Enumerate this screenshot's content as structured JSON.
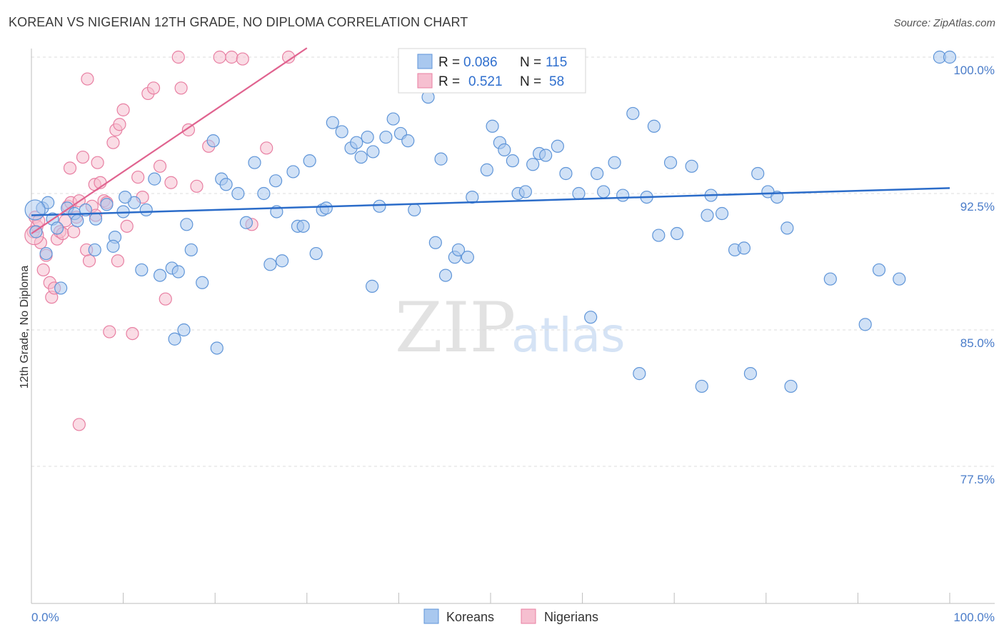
{
  "title": "KOREAN VS NIGERIAN 12TH GRADE, NO DIPLOMA CORRELATION CHART",
  "source": "Source: ZipAtlas.com",
  "watermark": {
    "zip": "ZIP",
    "atlas": "atlas"
  },
  "legend": {
    "r_label": "R =",
    "n_label": "N =",
    "rows": [
      {
        "series": "Koreans",
        "r": "0.086",
        "n": "115"
      },
      {
        "series": "Nigerians",
        "r": "0.521",
        "n": "58"
      }
    ]
  },
  "chart_data": {
    "type": "scatter",
    "title": "KOREAN VS NIGERIAN 12TH GRADE, NO DIPLOMA CORRELATION CHART",
    "xlabel": "",
    "ylabel": "12th Grade, No Diploma",
    "xlim": [
      0,
      100
    ],
    "ylim": [
      70,
      100.5
    ],
    "x_tick_labels": [
      "0.0%",
      "100.0%"
    ],
    "y_ticks": [
      {
        "value": 77.5,
        "label": "77.5%"
      },
      {
        "value": 85.0,
        "label": "85.0%"
      },
      {
        "value": 92.5,
        "label": "92.5%"
      },
      {
        "value": 100.0,
        "label": "100.0%"
      }
    ],
    "grid": true,
    "colors": {
      "Koreans_fill": "#a9c8ef",
      "Koreans_stroke": "#5f95d8",
      "Koreans_line": "#2b6cc9",
      "Nigerians_fill": "#f6bfd0",
      "Nigerians_stroke": "#e87fa2",
      "Nigerians_line": "#e0638f"
    },
    "series": [
      {
        "name": "Koreans",
        "trend": {
          "x0": 0,
          "y0": 91.3,
          "x1": 100,
          "y1": 92.8
        },
        "points": [
          [
            0.5,
            90.4
          ],
          [
            1.2,
            91.7
          ],
          [
            1.8,
            92.0
          ],
          [
            2.3,
            91.1
          ],
          [
            2.8,
            90.6
          ],
          [
            3.9,
            91.7
          ],
          [
            4.7,
            91.4
          ],
          [
            5.9,
            91.6
          ],
          [
            7.0,
            91.1
          ],
          [
            8.2,
            91.9
          ],
          [
            9.1,
            90.1
          ],
          [
            10.0,
            91.5
          ],
          [
            11.2,
            92.0
          ],
          [
            12.5,
            91.6
          ],
          [
            14.0,
            88.0
          ],
          [
            15.3,
            88.4
          ],
          [
            15.6,
            84.5
          ],
          [
            16.0,
            88.2
          ],
          [
            16.9,
            90.8
          ],
          [
            17.4,
            89.4
          ],
          [
            18.6,
            87.6
          ],
          [
            19.8,
            95.4
          ],
          [
            20.7,
            93.3
          ],
          [
            21.2,
            93.0
          ],
          [
            22.5,
            92.5
          ],
          [
            23.4,
            90.9
          ],
          [
            24.3,
            94.2
          ],
          [
            25.3,
            92.5
          ],
          [
            26.0,
            88.6
          ],
          [
            26.7,
            91.5
          ],
          [
            27.3,
            88.8
          ],
          [
            28.5,
            93.7
          ],
          [
            29.0,
            90.7
          ],
          [
            29.6,
            90.7
          ],
          [
            30.3,
            94.3
          ],
          [
            31.0,
            89.2
          ],
          [
            31.7,
            91.6
          ],
          [
            32.1,
            91.7
          ],
          [
            32.8,
            96.4
          ],
          [
            33.8,
            95.9
          ],
          [
            34.8,
            95.0
          ],
          [
            35.4,
            95.3
          ],
          [
            35.9,
            94.5
          ],
          [
            36.6,
            95.6
          ],
          [
            37.2,
            94.8
          ],
          [
            37.9,
            91.8
          ],
          [
            38.6,
            95.6
          ],
          [
            39.4,
            96.6
          ],
          [
            40.2,
            95.8
          ],
          [
            41.0,
            95.4
          ],
          [
            41.7,
            91.6
          ],
          [
            43.2,
            97.8
          ],
          [
            44.0,
            89.8
          ],
          [
            44.6,
            94.4
          ],
          [
            45.1,
            88.0
          ],
          [
            46.1,
            89.0
          ],
          [
            46.5,
            89.4
          ],
          [
            47.5,
            89.0
          ],
          [
            48.0,
            92.3
          ],
          [
            49.6,
            93.8
          ],
          [
            50.2,
            96.2
          ],
          [
            51.0,
            95.3
          ],
          [
            51.5,
            94.9
          ],
          [
            52.4,
            94.3
          ],
          [
            53.0,
            92.5
          ],
          [
            53.8,
            92.6
          ],
          [
            54.6,
            94.1
          ],
          [
            55.3,
            94.7
          ],
          [
            56.0,
            94.6
          ],
          [
            57.3,
            95.1
          ],
          [
            58.2,
            93.6
          ],
          [
            59.6,
            92.5
          ],
          [
            60.9,
            85.7
          ],
          [
            61.6,
            93.6
          ],
          [
            62.3,
            92.6
          ],
          [
            63.5,
            94.2
          ],
          [
            64.4,
            92.4
          ],
          [
            65.5,
            96.9
          ],
          [
            66.2,
            82.6
          ],
          [
            67.0,
            92.3
          ],
          [
            67.8,
            96.2
          ],
          [
            68.3,
            90.2
          ],
          [
            69.6,
            94.2
          ],
          [
            70.3,
            90.3
          ],
          [
            71.9,
            94.0
          ],
          [
            73.0,
            81.9
          ],
          [
            73.6,
            91.3
          ],
          [
            74.0,
            92.4
          ],
          [
            75.2,
            91.4
          ],
          [
            76.6,
            89.4
          ],
          [
            77.6,
            89.5
          ],
          [
            78.3,
            82.6
          ],
          [
            79.1,
            93.6
          ],
          [
            80.2,
            92.6
          ],
          [
            81.2,
            92.3
          ],
          [
            82.3,
            90.6
          ],
          [
            82.7,
            81.9
          ],
          [
            87.0,
            87.8
          ],
          [
            90.8,
            85.3
          ],
          [
            92.3,
            88.3
          ],
          [
            94.5,
            87.8
          ],
          [
            98.9,
            100.0
          ],
          [
            100.0,
            100.0
          ],
          [
            1.6,
            89.2
          ],
          [
            3.2,
            87.3
          ],
          [
            6.9,
            89.4
          ],
          [
            10.2,
            92.3
          ],
          [
            13.4,
            93.3
          ],
          [
            5.0,
            91.0
          ],
          [
            8.9,
            89.6
          ],
          [
            12.0,
            88.3
          ],
          [
            16.6,
            85.0
          ],
          [
            20.2,
            84.0
          ],
          [
            26.6,
            93.2
          ],
          [
            37.1,
            87.4
          ]
        ]
      },
      {
        "name": "Nigerians",
        "trend": {
          "x0": 0,
          "y0": 90.3,
          "x1": 30,
          "y1": 100.5
        },
        "points": [
          [
            0.2,
            90.4
          ],
          [
            0.4,
            91.2
          ],
          [
            0.6,
            90.7
          ],
          [
            0.8,
            91.0
          ],
          [
            1.0,
            89.8
          ],
          [
            1.3,
            88.3
          ],
          [
            1.6,
            89.1
          ],
          [
            2.0,
            87.6
          ],
          [
            2.2,
            86.8
          ],
          [
            2.5,
            87.3
          ],
          [
            2.8,
            90.0
          ],
          [
            3.1,
            90.4
          ],
          [
            3.4,
            90.3
          ],
          [
            3.7,
            91.0
          ],
          [
            4.0,
            91.8
          ],
          [
            4.3,
            92.0
          ],
          [
            4.6,
            90.4
          ],
          [
            4.9,
            91.2
          ],
          [
            5.2,
            92.1
          ],
          [
            5.6,
            94.5
          ],
          [
            6.0,
            89.4
          ],
          [
            6.3,
            88.8
          ],
          [
            6.6,
            91.8
          ],
          [
            6.9,
            93.0
          ],
          [
            7.2,
            94.2
          ],
          [
            7.5,
            93.1
          ],
          [
            7.9,
            92.1
          ],
          [
            8.2,
            92.0
          ],
          [
            8.5,
            84.9
          ],
          [
            8.9,
            95.3
          ],
          [
            9.2,
            96.0
          ],
          [
            9.6,
            96.3
          ],
          [
            10.0,
            97.1
          ],
          [
            10.4,
            90.7
          ],
          [
            11.0,
            84.8
          ],
          [
            11.6,
            93.4
          ],
          [
            12.1,
            92.3
          ],
          [
            12.7,
            98.0
          ],
          [
            13.3,
            98.3
          ],
          [
            14.0,
            94.0
          ],
          [
            14.6,
            86.7
          ],
          [
            15.2,
            93.1
          ],
          [
            16.0,
            100.0
          ],
          [
            17.1,
            96.0
          ],
          [
            18.0,
            92.9
          ],
          [
            19.3,
            95.1
          ],
          [
            20.5,
            100.0
          ],
          [
            21.8,
            100.0
          ],
          [
            23.0,
            99.9
          ],
          [
            24.0,
            90.8
          ],
          [
            25.6,
            95.0
          ],
          [
            28.0,
            100.0
          ],
          [
            5.2,
            79.8
          ],
          [
            6.1,
            98.8
          ],
          [
            7.0,
            91.3
          ],
          [
            9.4,
            88.8
          ],
          [
            4.2,
            93.9
          ],
          [
            16.3,
            98.3
          ]
        ]
      }
    ]
  }
}
